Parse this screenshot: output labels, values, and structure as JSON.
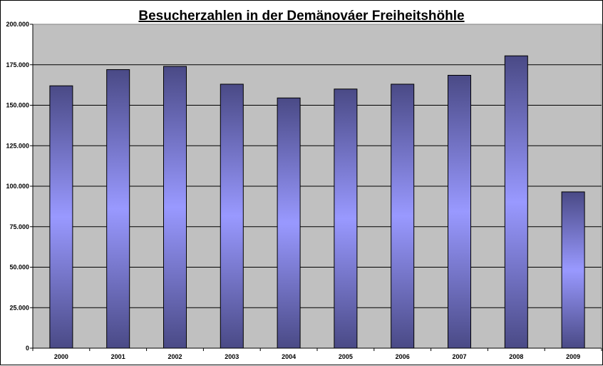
{
  "chart_data": {
    "type": "bar",
    "title": "Besucherzahlen in der Demänováer Freiheitshöhle",
    "xlabel": "",
    "ylabel": "",
    "categories": [
      "2000",
      "2001",
      "2002",
      "2003",
      "2004",
      "2005",
      "2006",
      "2007",
      "2008",
      "2009"
    ],
    "values": [
      162000,
      172000,
      174000,
      163000,
      154500,
      160000,
      163000,
      168500,
      180500,
      96500
    ],
    "ylim": [
      0,
      200000
    ],
    "y_ticks": [
      0,
      25000,
      50000,
      75000,
      100000,
      125000,
      150000,
      175000,
      200000
    ],
    "y_tick_labels": [
      "0",
      "25.000",
      "50.000",
      "75.000",
      "100.000",
      "125.000",
      "150.000",
      "175.000",
      "200.000"
    ],
    "grid": true,
    "legend": "none",
    "colors": {
      "plot_background": "#c0c0c0",
      "bar_dark": "#4a4a86",
      "bar_light": "#9999ff",
      "gridline": "#000000"
    }
  }
}
